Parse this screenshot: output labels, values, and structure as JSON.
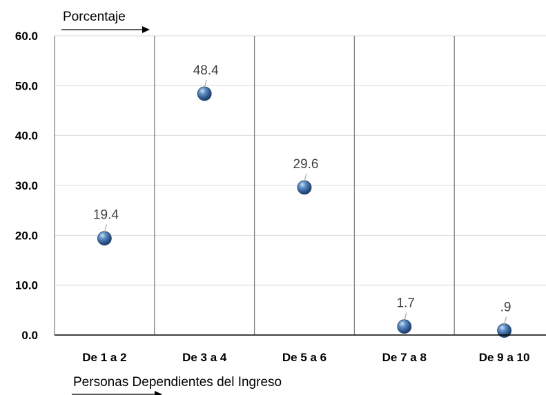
{
  "chart_data": {
    "type": "scatter",
    "ylabel": "Porcentaje",
    "xlabel": "Personas Dependientes del Ingreso",
    "categories": [
      "De 1 a 2",
      "De 3 a 4",
      "De 5 a 6",
      "De 7 a 8",
      "De 9 a 10"
    ],
    "values": [
      19.4,
      48.4,
      29.6,
      1.7,
      0.9
    ],
    "data_labels": [
      "19.4",
      "48.4",
      "29.6",
      "1.7",
      ".9"
    ],
    "ylim": [
      0,
      60
    ],
    "yticks": [
      "0.0",
      "10.0",
      "20.0",
      "30.0",
      "40.0",
      "50.0",
      "60.0"
    ],
    "grid": true,
    "legend": "none",
    "colors": {
      "marker": "#4f81bd",
      "marker_dark": "#1f3f66",
      "gridline": "#d9d9d9",
      "separator": "#808080",
      "axis": "#000000",
      "data_label": "#404040"
    }
  }
}
